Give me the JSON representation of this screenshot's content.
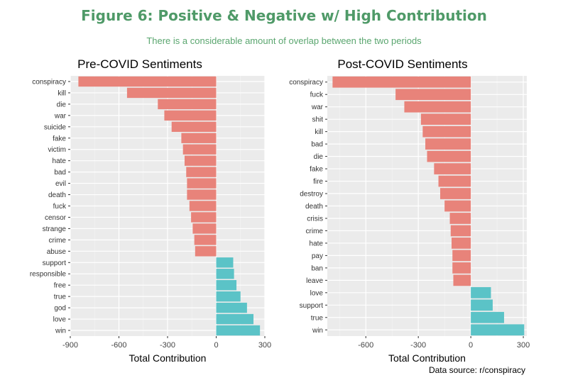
{
  "title": "Figure 6: Positive & Negative w/ High Contribution",
  "subtitle": "There is a considerable amount of overlap between the two periods",
  "source": "Data source: r/conspiracy",
  "colors": {
    "negative": "#e8837a",
    "positive": "#5bc3c7",
    "panel": "#ebebeb",
    "grid": "#ffffff",
    "title": "#4f9a68"
  },
  "chart_data": [
    {
      "type": "bar",
      "orientation": "horizontal",
      "title": "Pre-COVID Sentiments",
      "xlabel": "Total Contribution",
      "ylabel": "",
      "xlim": [
        -900,
        300
      ],
      "xticks": [
        -900,
        -600,
        -300,
        0,
        300
      ],
      "categories": [
        "conspiracy",
        "kill",
        "die",
        "war",
        "suicide",
        "fake",
        "victim",
        "hate",
        "bad",
        "evil",
        "death",
        "fuck",
        "censor",
        "strange",
        "crime",
        "abuse",
        "support",
        "responsible",
        "free",
        "true",
        "god",
        "love",
        "win"
      ],
      "values": [
        -850,
        -550,
        -360,
        -320,
        -275,
        -215,
        -205,
        -195,
        -185,
        -180,
        -180,
        -165,
        -155,
        -145,
        -135,
        -130,
        105,
        110,
        125,
        150,
        190,
        230,
        270
      ]
    },
    {
      "type": "bar",
      "orientation": "horizontal",
      "title": "Post-COVID Sentiments",
      "xlabel": "Total Contribution",
      "ylabel": "",
      "xlim": [
        -820,
        320
      ],
      "xticks": [
        -600,
        -300,
        0,
        300
      ],
      "categories": [
        "conspiracy",
        "fuck",
        "war",
        "shit",
        "kill",
        "bad",
        "die",
        "fake",
        "fire",
        "destroy",
        "death",
        "crisis",
        "crime",
        "hate",
        "pay",
        "ban",
        "leave",
        "love",
        "support",
        "true",
        "win"
      ],
      "values": [
        -790,
        -430,
        -380,
        -285,
        -275,
        -260,
        -250,
        -210,
        -185,
        -175,
        -150,
        -120,
        -115,
        -110,
        -105,
        -105,
        -100,
        115,
        125,
        190,
        305
      ]
    }
  ]
}
